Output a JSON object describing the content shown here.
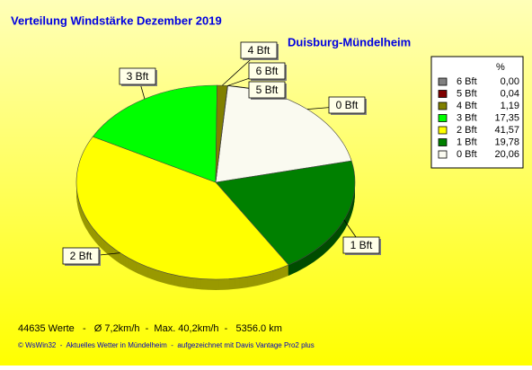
{
  "chart_data": {
    "type": "pie",
    "title": "Verteilung Windstärke  Dezember 2019",
    "subtitle": "Duisburg-Mündelheim",
    "legend_header": "%",
    "categories": [
      "6 Bft",
      "5 Bft",
      "4 Bft",
      "3 Bft",
      "2 Bft",
      "1 Bft",
      "0 Bft"
    ],
    "values": [
      0.0,
      0.04,
      1.19,
      17.35,
      41.57,
      19.78,
      20.06
    ],
    "value_labels": [
      "0,00",
      "0,04",
      "1,19",
      "17,35",
      "41,57",
      "19,78",
      "20,06"
    ],
    "colors": [
      "#808080",
      "#800000",
      "#808000",
      "#00ff00",
      "#ffff00",
      "#008000",
      "#fafaf0"
    ],
    "legend": "right",
    "footer": "44635 Werte   -   Ø 7,2km/h  -  Max. 40,2km/h  -   5356.0 km",
    "credits": "© WsWin32  -  Aktuelles Wetter in Mündelheim  -  aufgezeichnet mit Davis Vantage Pro2 plus"
  }
}
